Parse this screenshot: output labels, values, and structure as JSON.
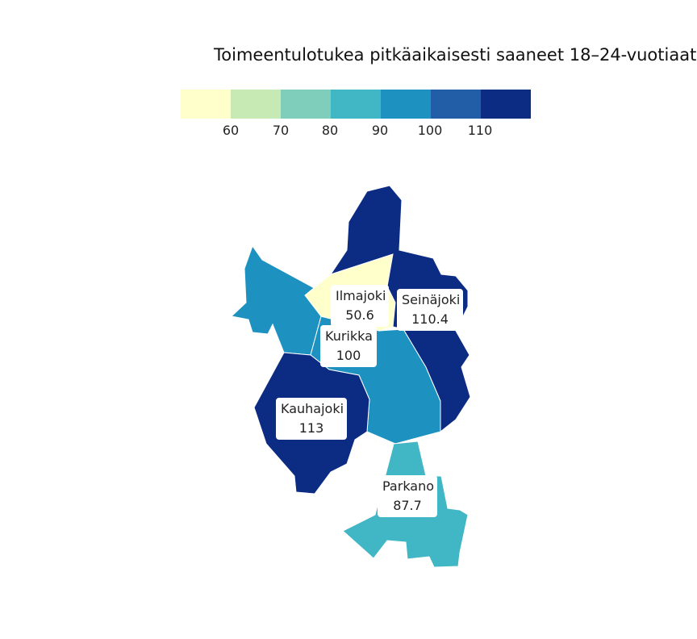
{
  "title": "Toimeentulotukea pitkäaikaisesti saaneet 18–24-vuotiaat",
  "legend": {
    "colors": [
      "#ffffcc",
      "#c7e9b4",
      "#7fcdbb",
      "#41b6c4",
      "#1d91c0",
      "#225ea8",
      "#0c2c84"
    ],
    "ticks": [
      "60",
      "70",
      "80",
      "90",
      "100",
      "110"
    ]
  },
  "regions": [
    {
      "name": "Ilmajoki",
      "value": "50.6",
      "color": "#ffffcc"
    },
    {
      "name": "Seinäjoki",
      "value": "110.4",
      "color": "#0c2c84"
    },
    {
      "name": "Kurikka",
      "value": "100",
      "color": "#1d91c0"
    },
    {
      "name": "Kauhajoki",
      "value": "113",
      "color": "#0c2c84"
    },
    {
      "name": "Parkano",
      "value": "87.7",
      "color": "#41b6c4"
    },
    {
      "name": "",
      "value": "",
      "color": "#1d91c0"
    }
  ]
}
